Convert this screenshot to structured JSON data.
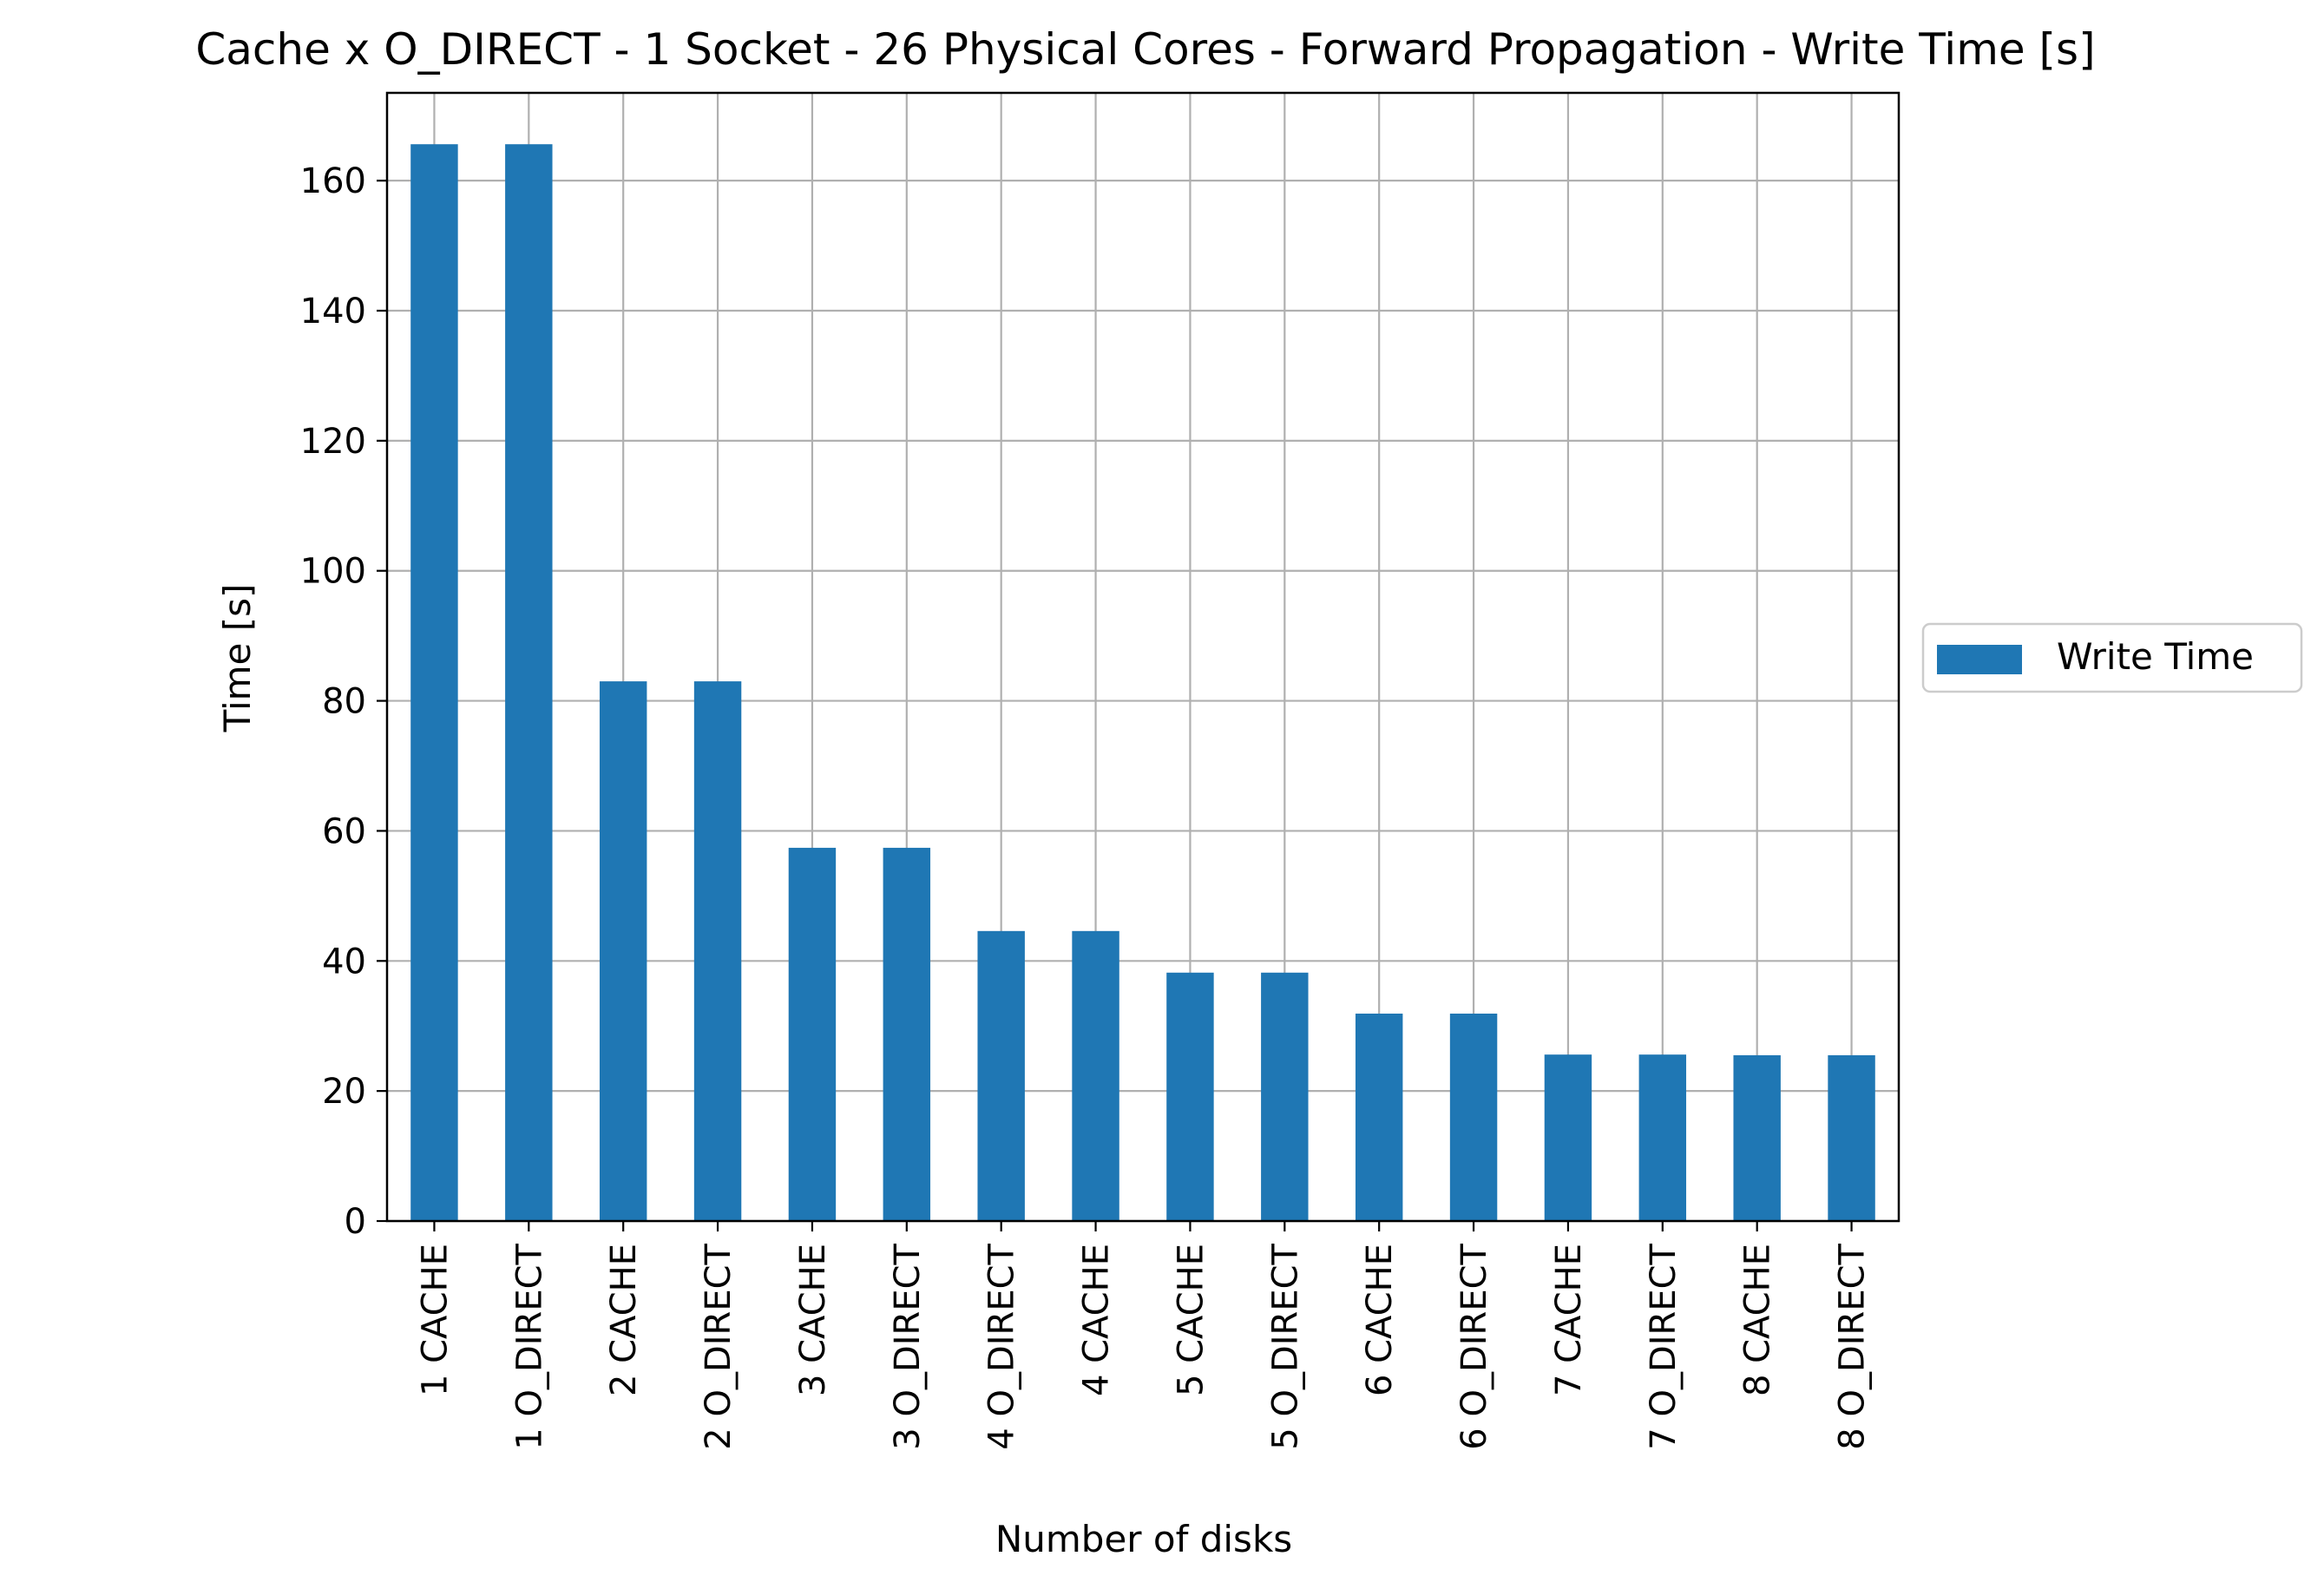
{
  "chart_data": {
    "type": "bar",
    "title": "Cache x O_DIRECT - 1 Socket - 26 Physical Cores - Forward Propagation - Write Time [s]",
    "xlabel": "Number of disks",
    "ylabel": "Time [s]",
    "ylim": [
      0,
      173.5
    ],
    "yticks": [
      0,
      20,
      40,
      60,
      80,
      100,
      120,
      140,
      160
    ],
    "grid": true,
    "legend_placement": "right-center, outside plot",
    "categories": [
      "1 CACHE",
      "1 O_DIRECT",
      "2 CACHE",
      "2 O_DIRECT",
      "3 CACHE",
      "3 O_DIRECT",
      "4 O_DIRECT",
      "4 CACHE",
      "5 CACHE",
      "5 O_DIRECT",
      "6 CACHE",
      "6 O_DIRECT",
      "7 CACHE",
      "7 O_DIRECT",
      "8 CACHE",
      "8 O_DIRECT"
    ],
    "series": [
      {
        "name": "Write Time",
        "color": "#1f77b4",
        "values": [
          165.6,
          165.6,
          83.0,
          83.0,
          57.4,
          57.4,
          44.6,
          44.6,
          38.2,
          38.2,
          31.9,
          31.9,
          25.6,
          25.6,
          25.5,
          25.5
        ]
      }
    ]
  },
  "colors": {
    "bar": "#1f77b4",
    "grid": "#b0b0b0",
    "axis": "#000000"
  }
}
